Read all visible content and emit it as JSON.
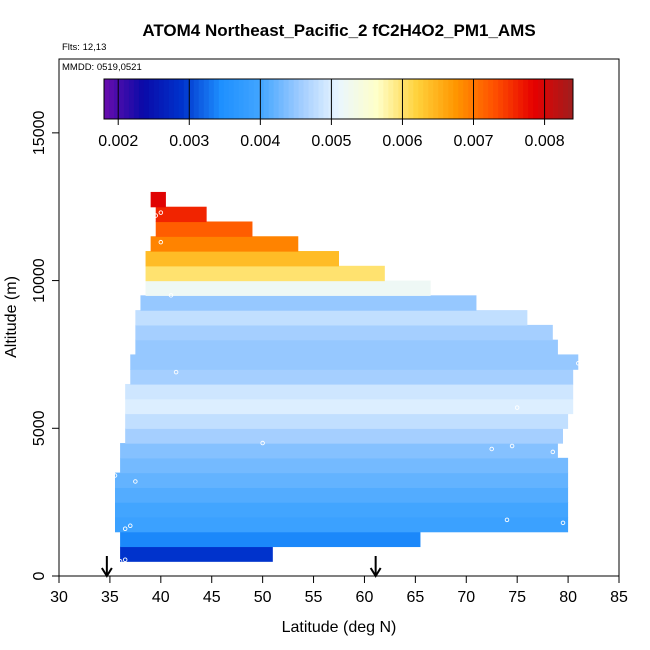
{
  "chart_data": {
    "type": "heatmap",
    "title": "ATOM4 Northeast_Pacific_2 fC2H4O2_PM1_AMS",
    "flights_label": "Flts: 12,13",
    "date_label": "MMDD: 0519,0521",
    "xlabel": "Latitude (deg N)",
    "ylabel": "Altitude (m)",
    "xlim": [
      30,
      85
    ],
    "ylim": [
      0,
      17500
    ],
    "x_ticks": [
      "30",
      "35",
      "40",
      "45",
      "50",
      "55",
      "60",
      "65",
      "70",
      "75",
      "80",
      "85"
    ],
    "y_ticks": [
      "0",
      "5000",
      "10000",
      "15000"
    ],
    "colorbar": {
      "range": [
        0.0018,
        0.0084
      ],
      "ticks": [
        "0.002",
        "0.003",
        "0.004",
        "0.005",
        "0.006",
        "0.007",
        "0.008"
      ],
      "colors": [
        "#6a0dad",
        "#0a0aa8",
        "#0033cc",
        "#1e90ff",
        "#42a5ff",
        "#9ecbff",
        "#eaf6ff",
        "#ffffc8",
        "#ffd23c",
        "#ff9600",
        "#ff5000",
        "#e60000",
        "#a01e1e"
      ]
    },
    "cells": [
      {
        "lat0": 36.0,
        "lat1": 51.0,
        "alt0": 500,
        "alt1": 1000,
        "value": 0.0029
      },
      {
        "lat0": 36.0,
        "lat1": 65.5,
        "alt0": 1000,
        "alt1": 1500,
        "value": 0.0034
      },
      {
        "lat0": 35.5,
        "lat1": 80.0,
        "alt0": 1500,
        "alt1": 2000,
        "value": 0.0039
      },
      {
        "lat0": 35.5,
        "lat1": 80.0,
        "alt0": 2000,
        "alt1": 2500,
        "value": 0.004
      },
      {
        "lat0": 35.5,
        "lat1": 80.0,
        "alt0": 2500,
        "alt1": 3000,
        "value": 0.0041
      },
      {
        "lat0": 35.5,
        "lat1": 80.0,
        "alt0": 3000,
        "alt1": 3500,
        "value": 0.0042
      },
      {
        "lat0": 36.0,
        "lat1": 80.0,
        "alt0": 3500,
        "alt1": 4000,
        "value": 0.0043
      },
      {
        "lat0": 36.0,
        "lat1": 79.0,
        "alt0": 4000,
        "alt1": 4500,
        "value": 0.0044
      },
      {
        "lat0": 36.5,
        "lat1": 79.5,
        "alt0": 4500,
        "alt1": 5000,
        "value": 0.0046
      },
      {
        "lat0": 36.5,
        "lat1": 80.0,
        "alt0": 5000,
        "alt1": 5500,
        "value": 0.0048
      },
      {
        "lat0": 36.5,
        "lat1": 80.5,
        "alt0": 5500,
        "alt1": 6000,
        "value": 0.005
      },
      {
        "lat0": 36.5,
        "lat1": 80.5,
        "alt0": 6000,
        "alt1": 6500,
        "value": 0.0049
      },
      {
        "lat0": 37.0,
        "lat1": 80.5,
        "alt0": 6500,
        "alt1": 7000,
        "value": 0.0046
      },
      {
        "lat0": 37.0,
        "lat1": 81.0,
        "alt0": 7000,
        "alt1": 7500,
        "value": 0.0045
      },
      {
        "lat0": 37.5,
        "lat1": 79.0,
        "alt0": 7500,
        "alt1": 8000,
        "value": 0.0045
      },
      {
        "lat0": 37.5,
        "lat1": 78.5,
        "alt0": 8000,
        "alt1": 8500,
        "value": 0.0046
      },
      {
        "lat0": 37.5,
        "lat1": 76.0,
        "alt0": 8500,
        "alt1": 9000,
        "value": 0.0048
      },
      {
        "lat0": 38.0,
        "lat1": 71.0,
        "alt0": 9000,
        "alt1": 9500,
        "value": 0.0045
      },
      {
        "lat0": 38.5,
        "lat1": 66.5,
        "alt0": 9500,
        "alt1": 10000,
        "value": 0.0052
      },
      {
        "lat0": 38.5,
        "lat1": 62.0,
        "alt0": 10000,
        "alt1": 10500,
        "value": 0.006
      },
      {
        "lat0": 38.5,
        "lat1": 57.5,
        "alt0": 10500,
        "alt1": 11000,
        "value": 0.0064
      },
      {
        "lat0": 39.0,
        "lat1": 53.5,
        "alt0": 11000,
        "alt1": 11500,
        "value": 0.0069
      },
      {
        "lat0": 39.5,
        "lat1": 49.0,
        "alt0": 11500,
        "alt1": 12000,
        "value": 0.0072
      },
      {
        "lat0": 39.5,
        "lat1": 44.5,
        "alt0": 12000,
        "alt1": 12500,
        "value": 0.0076
      },
      {
        "lat0": 39.0,
        "lat1": 40.5,
        "alt0": 12500,
        "alt1": 13000,
        "value": 0.0079
      }
    ],
    "observations": [
      {
        "lat": 36.0,
        "alt": 500
      },
      {
        "lat": 36.5,
        "alt": 550
      },
      {
        "lat": 35.5,
        "alt": 1300
      },
      {
        "lat": 36.5,
        "alt": 1600
      },
      {
        "lat": 37.0,
        "alt": 1700
      },
      {
        "lat": 35.0,
        "alt": 1700
      },
      {
        "lat": 35.0,
        "alt": 3000
      },
      {
        "lat": 37.5,
        "alt": 3200
      },
      {
        "lat": 35.5,
        "alt": 3400
      },
      {
        "lat": 50.0,
        "alt": 4500
      },
      {
        "lat": 72.5,
        "alt": 4300
      },
      {
        "lat": 74.5,
        "alt": 4400
      },
      {
        "lat": 75.0,
        "alt": 5700
      },
      {
        "lat": 78.5,
        "alt": 4200
      },
      {
        "lat": 74.0,
        "alt": 1900
      },
      {
        "lat": 79.5,
        "alt": 1800
      },
      {
        "lat": 41.5,
        "alt": 6900
      },
      {
        "lat": 81.0,
        "alt": 7200
      },
      {
        "lat": 40.0,
        "alt": 11300
      },
      {
        "lat": 39.5,
        "alt": 12200
      },
      {
        "lat": 40.0,
        "alt": 12300
      },
      {
        "lat": 41.0,
        "alt": 9500
      }
    ],
    "arrow_markers": [
      34.7,
      61.1
    ]
  }
}
